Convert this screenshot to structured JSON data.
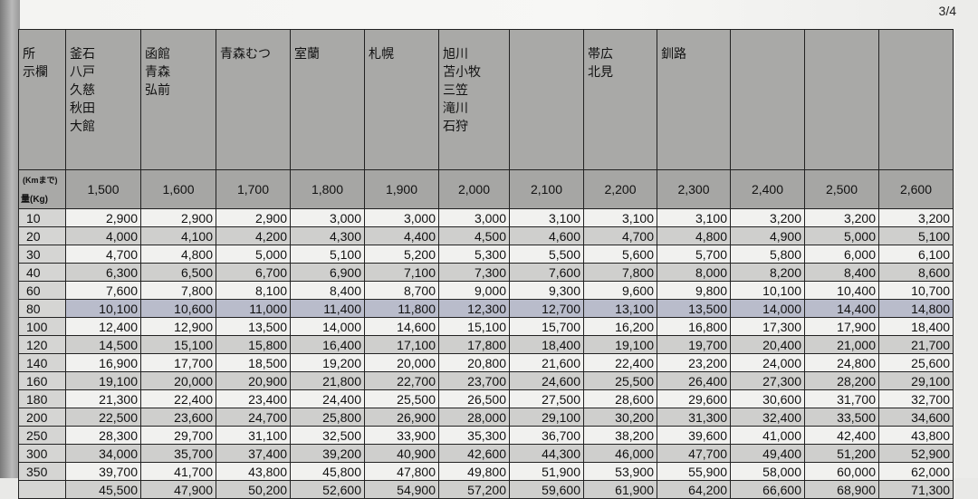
{
  "page_number": "3/4",
  "header": {
    "corner_label": "所\n示欄",
    "distance_label": "(Kmまで)",
    "weight_label": "量(Kg)",
    "destinations": [
      "釜石\n八戸\n久慈\n秋田\n大館",
      "函館\n青森\n弘前",
      "青森むつ",
      "室蘭",
      "札幌",
      "旭川\n苫小牧\n三笠\n滝川\n石狩",
      "",
      "帯広\n北見",
      "釧路",
      "",
      "",
      ""
    ],
    "distances": [
      "1,500",
      "1,600",
      "1,700",
      "1,800",
      "1,900",
      "2,000",
      "2,100",
      "2,200",
      "2,300",
      "2,400",
      "2,500",
      "2,600"
    ]
  },
  "highlight_color": "#b9bccb",
  "highlighted_weight": "80",
  "rows": [
    {
      "weight": "10",
      "values": [
        "2,900",
        "2,900",
        "2,900",
        "3,000",
        "3,000",
        "3,000",
        "3,100",
        "3,100",
        "3,100",
        "3,200",
        "3,200",
        "3,200"
      ]
    },
    {
      "weight": "20",
      "values": [
        "4,000",
        "4,100",
        "4,200",
        "4,300",
        "4,400",
        "4,500",
        "4,600",
        "4,700",
        "4,800",
        "4,900",
        "5,000",
        "5,100"
      ]
    },
    {
      "weight": "30",
      "values": [
        "4,700",
        "4,800",
        "5,000",
        "5,100",
        "5,200",
        "5,300",
        "5,500",
        "5,600",
        "5,700",
        "5,800",
        "6,000",
        "6,100"
      ]
    },
    {
      "weight": "40",
      "values": [
        "6,300",
        "6,500",
        "6,700",
        "6,900",
        "7,100",
        "7,300",
        "7,600",
        "7,800",
        "8,000",
        "8,200",
        "8,400",
        "8,600"
      ]
    },
    {
      "weight": "60",
      "values": [
        "7,600",
        "7,800",
        "8,100",
        "8,400",
        "8,700",
        "9,000",
        "9,300",
        "9,600",
        "9,800",
        "10,100",
        "10,400",
        "10,700"
      ]
    },
    {
      "weight": "80",
      "values": [
        "10,100",
        "10,600",
        "11,000",
        "11,400",
        "11,800",
        "12,300",
        "12,700",
        "13,100",
        "13,500",
        "14,000",
        "14,400",
        "14,800"
      ]
    },
    {
      "weight": "100",
      "values": [
        "12,400",
        "12,900",
        "13,500",
        "14,000",
        "14,600",
        "15,100",
        "15,700",
        "16,200",
        "16,800",
        "17,300",
        "17,900",
        "18,400"
      ]
    },
    {
      "weight": "120",
      "values": [
        "14,500",
        "15,100",
        "15,800",
        "16,400",
        "17,100",
        "17,800",
        "18,400",
        "19,100",
        "19,700",
        "20,400",
        "21,000",
        "21,700"
      ]
    },
    {
      "weight": "140",
      "values": [
        "16,900",
        "17,700",
        "18,500",
        "19,200",
        "20,000",
        "20,800",
        "21,600",
        "22,400",
        "23,200",
        "24,000",
        "24,800",
        "25,600"
      ]
    },
    {
      "weight": "160",
      "values": [
        "19,100",
        "20,000",
        "20,900",
        "21,800",
        "22,700",
        "23,700",
        "24,600",
        "25,500",
        "26,400",
        "27,300",
        "28,200",
        "29,100"
      ]
    },
    {
      "weight": "180",
      "values": [
        "21,300",
        "22,400",
        "23,400",
        "24,400",
        "25,500",
        "26,500",
        "27,500",
        "28,600",
        "29,600",
        "30,600",
        "31,700",
        "32,700"
      ]
    },
    {
      "weight": "200",
      "values": [
        "22,500",
        "23,600",
        "24,700",
        "25,800",
        "26,900",
        "28,000",
        "29,100",
        "30,200",
        "31,300",
        "32,400",
        "33,500",
        "34,600"
      ]
    },
    {
      "weight": "250",
      "values": [
        "28,300",
        "29,700",
        "31,100",
        "32,500",
        "33,900",
        "35,300",
        "36,700",
        "38,200",
        "39,600",
        "41,000",
        "42,400",
        "43,800"
      ]
    },
    {
      "weight": "300",
      "values": [
        "34,000",
        "35,700",
        "37,400",
        "39,200",
        "40,900",
        "42,600",
        "44,300",
        "46,000",
        "47,700",
        "49,400",
        "51,200",
        "52,900"
      ]
    },
    {
      "weight": "350",
      "values": [
        "39,700",
        "41,700",
        "43,800",
        "45,800",
        "47,800",
        "49,800",
        "51,900",
        "53,900",
        "55,900",
        "58,000",
        "60,000",
        "62,000"
      ]
    },
    {
      "weight": "",
      "values": [
        "45,500",
        "47,900",
        "50,200",
        "52,600",
        "54,900",
        "57,200",
        "59,600",
        "61,900",
        "64,200",
        "66,600",
        "68,900",
        "71,300"
      ]
    }
  ]
}
